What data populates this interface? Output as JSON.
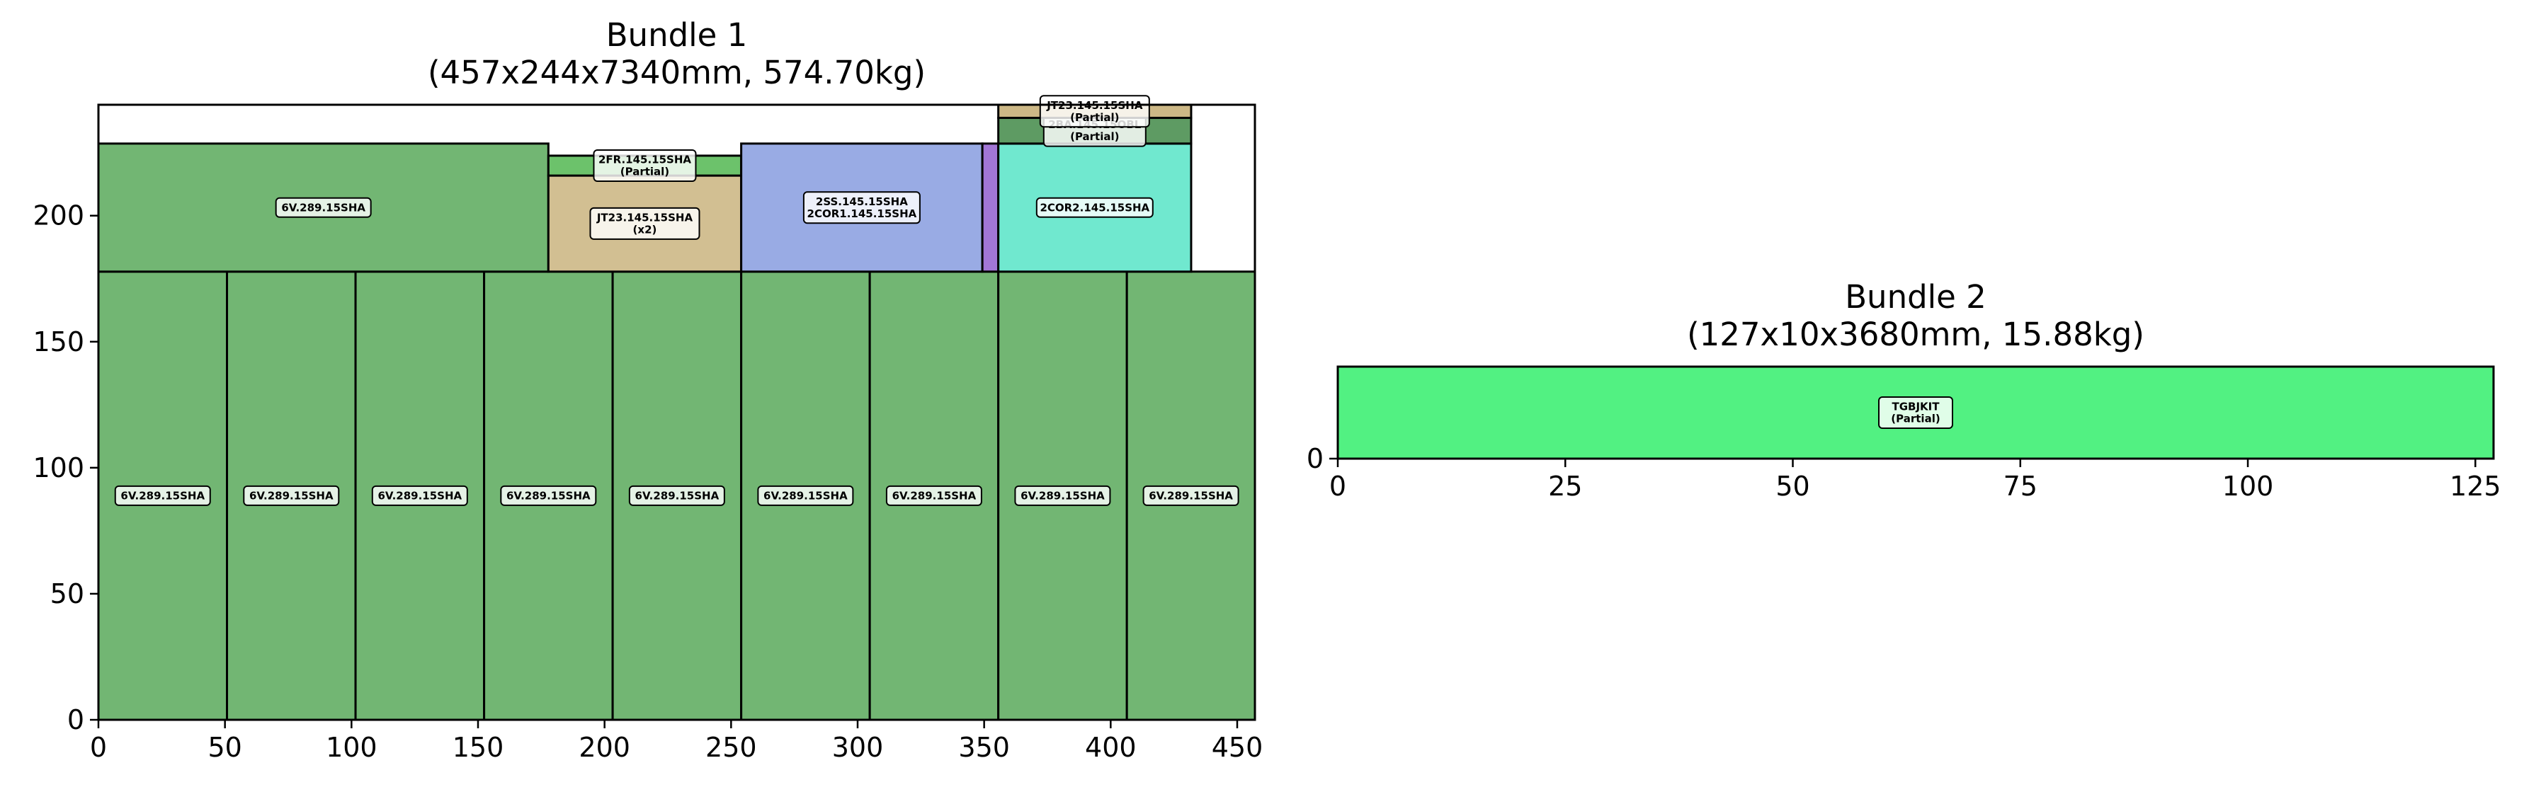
{
  "chart_data": [
    {
      "type": "packing",
      "title_line1": "Bundle 1",
      "title_line2": "(457x244x7340mm, 574.70kg)",
      "xlim": [
        0,
        457
      ],
      "ylim": [
        0,
        244
      ],
      "xticks": [
        0,
        50,
        100,
        150,
        200,
        250,
        300,
        350,
        400,
        450
      ],
      "yticks": [
        0,
        50,
        100,
        150,
        200
      ],
      "items": [
        {
          "label": [
            "6V.289.15SHA"
          ],
          "x": 0,
          "y": 0,
          "w": 50.8,
          "h": 177.8,
          "color": "#72b673"
        },
        {
          "label": [
            "6V.289.15SHA"
          ],
          "x": 50.8,
          "y": 0,
          "w": 50.8,
          "h": 177.8,
          "color": "#72b673"
        },
        {
          "label": [
            "6V.289.15SHA"
          ],
          "x": 101.6,
          "y": 0,
          "w": 50.8,
          "h": 177.8,
          "color": "#72b673"
        },
        {
          "label": [
            "6V.289.15SHA"
          ],
          "x": 152.4,
          "y": 0,
          "w": 50.8,
          "h": 177.8,
          "color": "#72b673"
        },
        {
          "label": [
            "6V.289.15SHA"
          ],
          "x": 203.2,
          "y": 0,
          "w": 50.8,
          "h": 177.8,
          "color": "#72b673"
        },
        {
          "label": [
            "6V.289.15SHA"
          ],
          "x": 254,
          "y": 0,
          "w": 50.8,
          "h": 177.8,
          "color": "#72b673"
        },
        {
          "label": [
            "6V.289.15SHA"
          ],
          "x": 304.8,
          "y": 0,
          "w": 50.8,
          "h": 177.8,
          "color": "#72b673"
        },
        {
          "label": [
            "6V.289.15SHA"
          ],
          "x": 355.6,
          "y": 0,
          "w": 50.8,
          "h": 177.8,
          "color": "#72b673"
        },
        {
          "label": [
            "6V.289.15SHA"
          ],
          "x": 406.4,
          "y": 0,
          "w": 50.6,
          "h": 177.8,
          "color": "#72b673"
        },
        {
          "label": [
            "6V.289.15SHA"
          ],
          "x": 0,
          "y": 177.8,
          "w": 177.8,
          "h": 50.8,
          "color": "#72b673"
        },
        {
          "label": [
            "JT23.145.15SHA",
            "(x2)"
          ],
          "x": 177.8,
          "y": 177.8,
          "w": 76.2,
          "h": 38.1,
          "color": "#d2bf92"
        },
        {
          "label": [
            "2FR.145.15SHA",
            "(Partial)"
          ],
          "x": 177.8,
          "y": 215.9,
          "w": 76.2,
          "h": 7.9,
          "color": "#6cc26b"
        },
        {
          "label": [
            "2SS.145.15SHA",
            "2COR1.145.15SHA"
          ],
          "x": 254,
          "y": 177.8,
          "w": 95.3,
          "h": 50.8,
          "color": "#99abe4"
        },
        {
          "label": [],
          "x": 349.3,
          "y": 177.8,
          "w": 6.3,
          "h": 50.8,
          "color": "#a276d6"
        },
        {
          "label": [
            "2COR2.145.15SHA"
          ],
          "x": 355.6,
          "y": 177.8,
          "w": 76.2,
          "h": 50.8,
          "color": "#70e8cf"
        },
        {
          "label": [
            "2BA.145.15OBL",
            "(Partial)"
          ],
          "x": 355.6,
          "y": 228.6,
          "w": 76.2,
          "h": 10.2,
          "color": "#5e9b63"
        },
        {
          "label": [
            "JT23.145.15SHA",
            "(Partial)"
          ],
          "x": 355.6,
          "y": 238.8,
          "w": 76.2,
          "h": 5.2,
          "color": "#cdb886"
        }
      ]
    },
    {
      "type": "packing",
      "title_line1": "Bundle 2",
      "title_line2": "(127x10x3680mm, 15.88kg)",
      "xlim": [
        0,
        127
      ],
      "ylim": [
        0,
        10
      ],
      "xticks": [
        0,
        25,
        50,
        75,
        100,
        125
      ],
      "yticks": [
        0
      ],
      "items": [
        {
          "label": [
            "TGBJKIT",
            "(Partial)"
          ],
          "x": 0,
          "y": 0,
          "w": 127,
          "h": 10,
          "color": "#52f182"
        }
      ]
    }
  ]
}
